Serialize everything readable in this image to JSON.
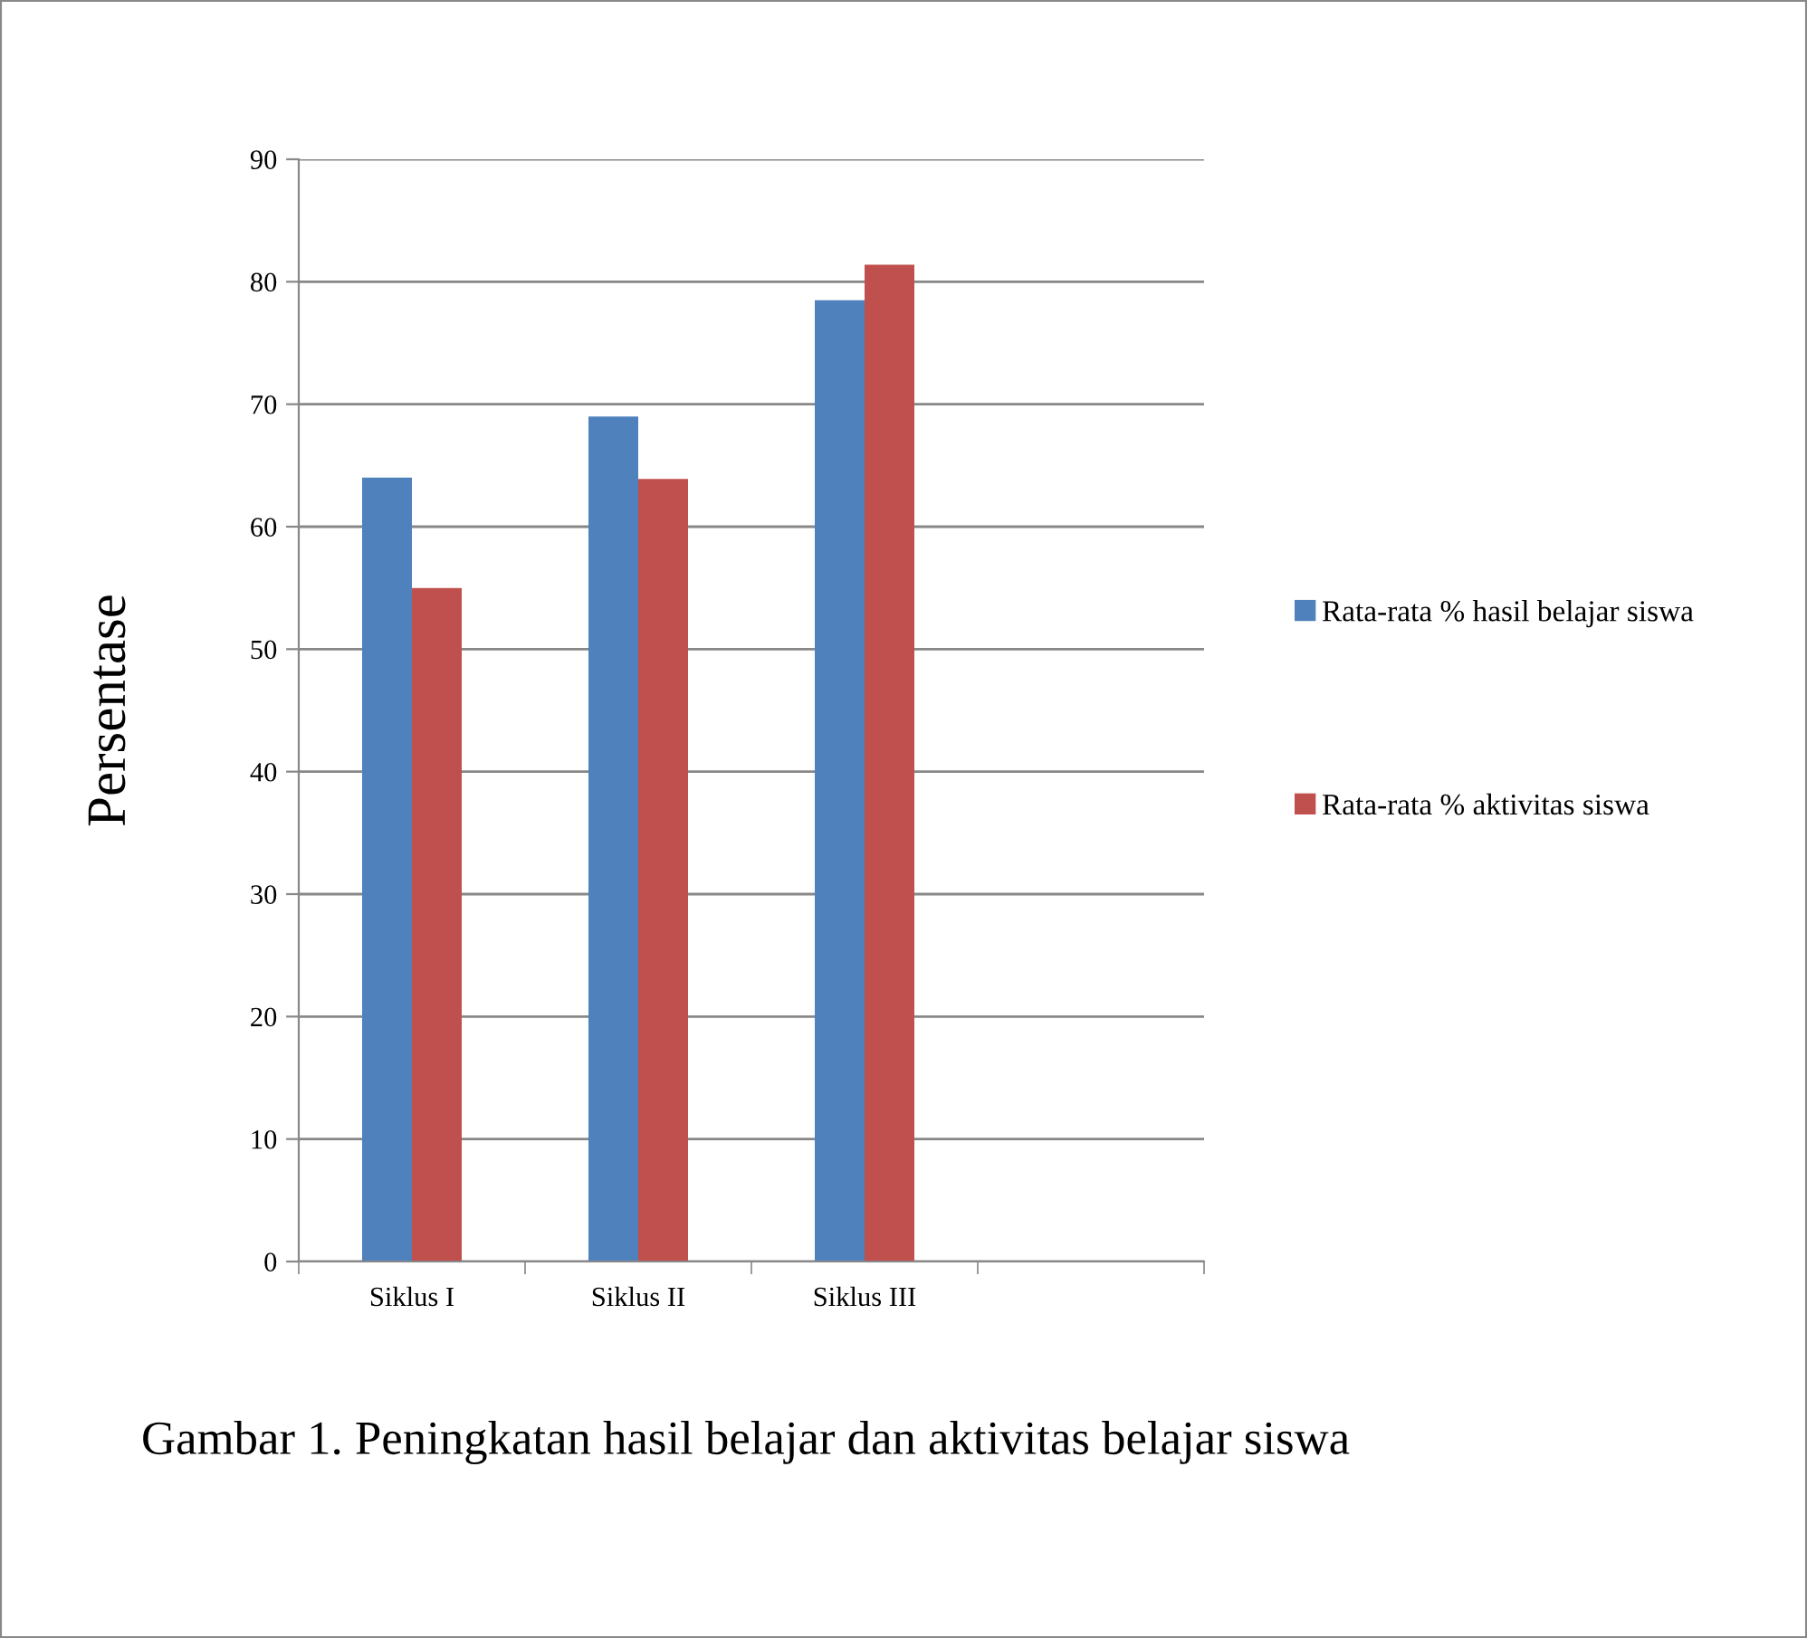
{
  "chart_data": {
    "type": "bar",
    "ylabel": "Persentase",
    "categories": [
      "Siklus I",
      "Siklus II",
      "Siklus III",
      null
    ],
    "series": [
      {
        "name": "Rata-rata % hasil belajar siswa",
        "color": "#4f81bd",
        "values": [
          64,
          69,
          78.5,
          null
        ]
      },
      {
        "name": "Rata-rata % aktivitas siswa",
        "color": "#c0504d",
        "values": [
          55,
          63.9,
          81.4,
          null
        ]
      }
    ],
    "ylim": [
      0,
      90
    ],
    "yticks": [
      0,
      10,
      20,
      30,
      40,
      50,
      60,
      70,
      80,
      90
    ],
    "grid": "y",
    "legend": "right",
    "annotations": [
      "Gambar 1. Peningkatan hasil belajar dan aktivitas belajar siswa"
    ]
  }
}
